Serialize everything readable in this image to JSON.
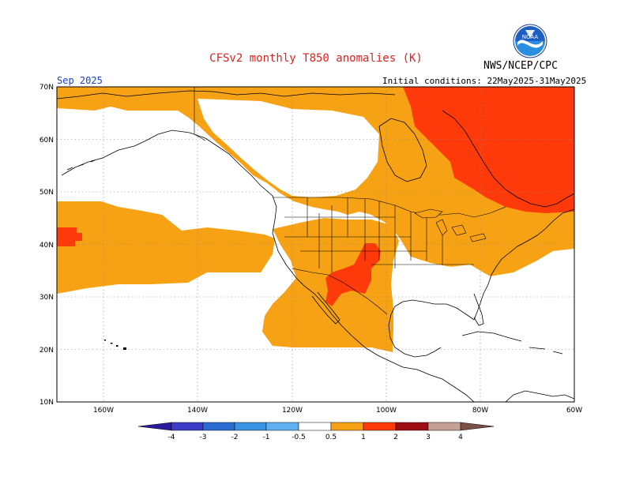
{
  "header": {
    "title": "CFSv2 monthly T850 anomalies (K)",
    "agency": "NWS/NCEP/CPC",
    "month": "Sep 2025",
    "initial_conditions": "Initial conditions: 22May2025-31May2025",
    "logo_text": "NOAA"
  },
  "map": {
    "lat_labels": [
      "70N",
      "60N",
      "50N",
      "40N",
      "30N",
      "20N",
      "10N"
    ],
    "lon_labels": [
      "160W",
      "140W",
      "120W",
      "100W",
      "80W",
      "60W"
    ]
  },
  "colorbar": {
    "labels": [
      "-4",
      "-3",
      "-2",
      "-1",
      "-0.5",
      "0.5",
      "1",
      "2",
      "3",
      "4"
    ],
    "colors": [
      "#2a1a9c",
      "#3c3cc8",
      "#2a6cd0",
      "#3a92e2",
      "#5fb0f0",
      "#ffffff",
      "#f7a215",
      "#ff3a0a",
      "#9e0c14",
      "#c5a095",
      "#7a5047"
    ]
  }
}
